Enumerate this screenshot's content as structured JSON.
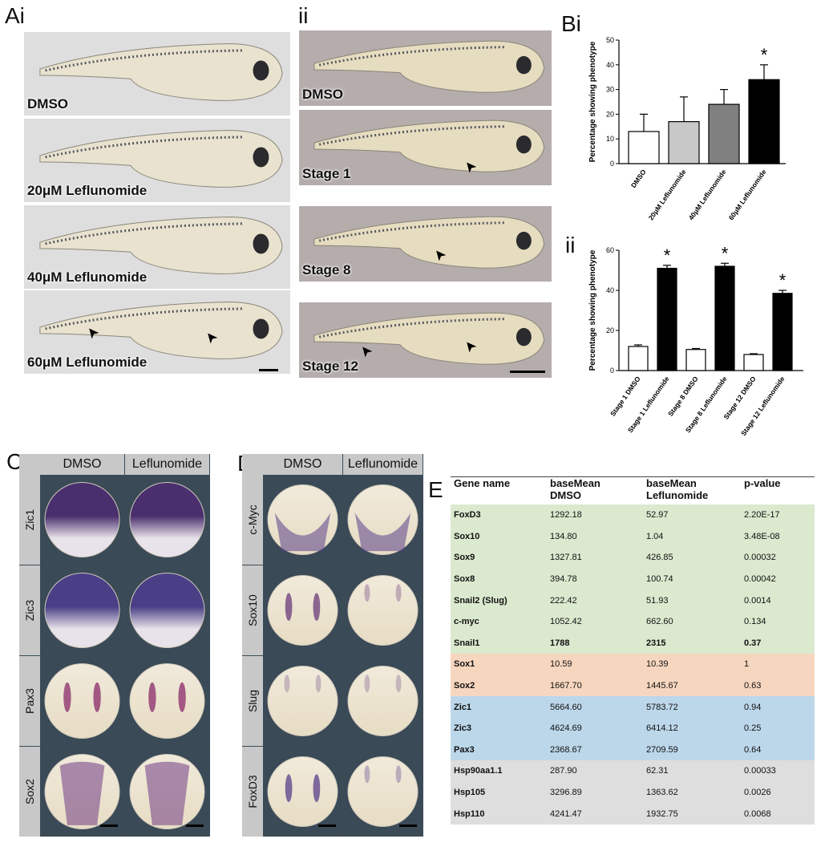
{
  "panel_letters": {
    "A": "Ai",
    "Aii": "ii",
    "B": "Bi",
    "Bii": "ii",
    "C": "C",
    "D": "D",
    "E": "E"
  },
  "panel_a_i": [
    "DMSO",
    "20μM Leflunomide",
    "40μM Leflunomide",
    "60μM Leflunomide"
  ],
  "panel_a_ii": [
    "DMSO",
    "Stage 1",
    "Stage 8",
    "Stage 12"
  ],
  "panel_c": {
    "cols": [
      "DMSO",
      "Leflunomide"
    ],
    "rows": [
      "Zic1",
      "Zic3",
      "Pax3",
      "Sox2"
    ]
  },
  "panel_d": {
    "cols": [
      "DMSO",
      "Leflunomide"
    ],
    "rows": [
      "c-Myc",
      "Sox10",
      "Slug",
      "FoxD3"
    ]
  },
  "colors": {
    "embryo_bg": "#3d4d58",
    "green_rows": "#dbe9cf",
    "orange_rows": "#f7d6bf",
    "blue_rows": "#bcd7ea",
    "grey_rows": "#dedede"
  },
  "chart_data": [
    {
      "type": "bar",
      "categories": [
        "DMSO",
        "20μM Leflunomide",
        "40μM Leflunomide",
        "60μM Leflunomide"
      ],
      "values": [
        13,
        17,
        24,
        34
      ],
      "errors": [
        7,
        10,
        6,
        6
      ],
      "bar_colors": [
        "#ffffff",
        "#c8c8c8",
        "#808080",
        "#000000"
      ],
      "significant": [
        false,
        false,
        false,
        true
      ],
      "significance_mark": "*",
      "ylabel": "Percentage showing phenotype",
      "ylim": [
        0,
        50
      ],
      "yticks": [
        0,
        10,
        20,
        30,
        40,
        50
      ]
    },
    {
      "type": "bar",
      "categories": [
        "Stage 1 DMSO",
        "Stage 1 Leflunomide",
        "Stage 8 DMSO",
        "Stage 8 Leflunomide",
        "Stage 12 DMSO",
        "Stage 12 Leflunomide"
      ],
      "values": [
        12,
        51,
        10.5,
        52,
        8,
        38.5
      ],
      "errors": [
        0.8,
        1.5,
        0.5,
        1.5,
        0.4,
        1.5
      ],
      "bar_colors": [
        "#ffffff",
        "#000000",
        "#ffffff",
        "#000000",
        "#ffffff",
        "#000000"
      ],
      "significant": [
        false,
        true,
        false,
        true,
        false,
        true
      ],
      "significance_mark": "*",
      "ylabel": "Percentage showing phenotype",
      "ylim": [
        0,
        60
      ],
      "yticks": [
        0,
        20,
        40,
        60
      ]
    }
  ],
  "table": {
    "headers": [
      "Gene name",
      "baseMean\nDMSO",
      "baseMean\nLeflunomide",
      "p-value"
    ],
    "rows": [
      {
        "group": "g",
        "cells": [
          "FoxD3",
          "1292.18",
          "52.97",
          "2.20E-17"
        ]
      },
      {
        "group": "g",
        "cells": [
          "Sox10",
          "134.80",
          "1.04",
          "3.48E-08"
        ]
      },
      {
        "group": "g",
        "cells": [
          "Sox9",
          "1327.81",
          "426.85",
          "0.00032"
        ]
      },
      {
        "group": "g",
        "cells": [
          "Sox8",
          "394.78",
          "100.74",
          "0.00042"
        ]
      },
      {
        "group": "g",
        "cells": [
          "Snail2 (Slug)",
          "222.42",
          "51.93",
          "0.0014"
        ]
      },
      {
        "group": "g",
        "cells": [
          "c-myc",
          "1052.42",
          "662.60",
          "0.134"
        ]
      },
      {
        "group": "g",
        "cells": [
          "Snail1",
          "1788",
          "2315",
          "0.37"
        ]
      },
      {
        "group": "o",
        "cells": [
          "Sox1",
          "10.59",
          "10.39",
          "1"
        ]
      },
      {
        "group": "o",
        "cells": [
          "Sox2",
          "1667.70",
          "1445.67",
          "0.63"
        ]
      },
      {
        "group": "b",
        "cells": [
          "Zic1",
          "5664.60",
          "5783.72",
          "0.94"
        ]
      },
      {
        "group": "b",
        "cells": [
          "Zic3",
          "4624.69",
          "6414.12",
          "0.25"
        ]
      },
      {
        "group": "b",
        "cells": [
          "Pax3",
          "2368.67",
          "2709.59",
          "0.64"
        ]
      },
      {
        "group": "gr",
        "cells": [
          "Hsp90aa1.1",
          "287.90",
          "62.31",
          "0.00033"
        ]
      },
      {
        "group": "gr",
        "cells": [
          "Hsp105",
          "3296.89",
          "1363.62",
          "0.0026"
        ]
      },
      {
        "group": "gr",
        "cells": [
          "Hsp110",
          "4241.47",
          "1932.75",
          "0.0068"
        ]
      }
    ]
  }
}
